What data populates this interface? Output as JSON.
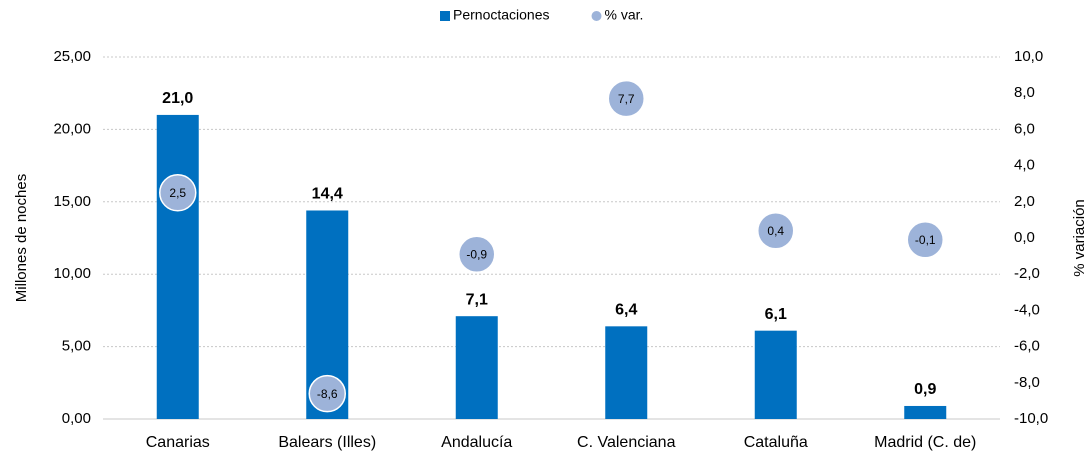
{
  "chart_data": {
    "type": "bar",
    "categories": [
      "Canarias",
      "Balears (Illes)",
      "Andalucía",
      "C. Valenciana",
      "Cataluña",
      "Madrid (C. de)"
    ],
    "series": [
      {
        "name": "Pernoctaciones",
        "color": "#0070c0",
        "values": [
          21.0,
          14.4,
          7.1,
          6.4,
          6.1,
          0.9
        ],
        "value_labels": [
          "21,0",
          "14,4",
          "7,1",
          "6,4",
          "6,1",
          "0,9"
        ]
      },
      {
        "name": "% var.",
        "color": "#9db3d9",
        "axis": "y2",
        "values": [
          2.5,
          -8.6,
          -0.9,
          7.7,
          0.4,
          -0.1
        ],
        "value_labels": [
          "2,5",
          "-8,6",
          "-0,9",
          "7,7",
          "0,4",
          "-0,1"
        ]
      }
    ],
    "ylabel": "Millones de noches",
    "y2label": "% variación",
    "ylim": [
      0,
      25
    ],
    "yticks": [
      {
        "value": 0,
        "label": "0,00"
      },
      {
        "value": 5,
        "label": "5,00"
      },
      {
        "value": 10,
        "label": "10,00"
      },
      {
        "value": 15,
        "label": "15,00"
      },
      {
        "value": 20,
        "label": "20,00"
      },
      {
        "value": 25,
        "label": "25,00"
      }
    ],
    "y2lim": [
      -10,
      10
    ],
    "y2ticks": [
      {
        "value": -10,
        "label": "-10,0"
      },
      {
        "value": -8,
        "label": "-8,0"
      },
      {
        "value": -6,
        "label": "-6,0"
      },
      {
        "value": -4,
        "label": "-4,0"
      },
      {
        "value": -2,
        "label": "-2,0"
      },
      {
        "value": 0,
        "label": "0,0"
      },
      {
        "value": 2,
        "label": "2,0"
      },
      {
        "value": 4,
        "label": "4,0"
      },
      {
        "value": 6,
        "label": "6,0"
      },
      {
        "value": 8,
        "label": "8,0"
      },
      {
        "value": 10,
        "label": "10,0"
      }
    ],
    "grid": true,
    "legend": "top"
  }
}
